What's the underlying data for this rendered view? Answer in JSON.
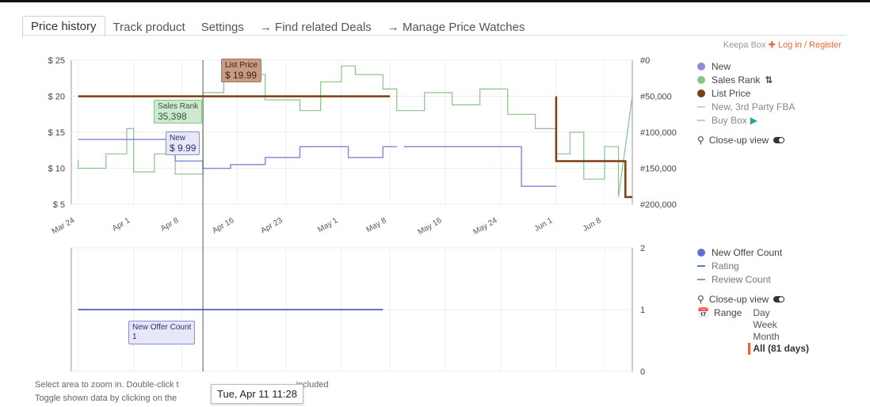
{
  "tabs": [
    {
      "label": "Price history",
      "active": true
    },
    {
      "label": "Track product"
    },
    {
      "label": "Settings"
    },
    {
      "label": "→ Find related Deals"
    },
    {
      "label": "→ Manage Price Watches"
    }
  ],
  "keepa": {
    "brand": "Keepa Box",
    "login": "Log in / Register"
  },
  "legend_top": {
    "new": "New",
    "sales_rank": "Sales Rank",
    "list_price": "List Price",
    "third_party": "New, 3rd Party FBA",
    "buy_box": "Buy Box",
    "closeup": "Close-up view"
  },
  "legend_bottom": {
    "offer_count": "New Offer Count",
    "rating": "Rating",
    "review_count": "Review Count",
    "closeup": "Close-up view",
    "range_label": "Range",
    "ranges": [
      "Day",
      "Week",
      "Month",
      "All (81 days)"
    ]
  },
  "tooltips": {
    "list_price_title": "List Price",
    "list_price_value": "$ 19.99",
    "sales_rank_title": "Sales Rank",
    "sales_rank_value": "35,398",
    "new_title": "New",
    "new_value": "$ 9.99",
    "offer_title": "New Offer Count",
    "offer_value": "1",
    "date": "Tue, Apr 11 11:28"
  },
  "footer": {
    "line1a": "Select area to zoom in. Double-click t",
    "line1b": "included",
    "line2": "Toggle shown data by clicking on the"
  },
  "colors": {
    "new": "#8b8bd6",
    "sales_rank": "#8dc08d",
    "list_price": "#7a3f12",
    "offer_count": "#6670d4",
    "accent": "#e8663d"
  },
  "chart_data": [
    {
      "type": "line",
      "x_ticks": [
        "Mar 24",
        "Apr 1",
        "Apr 8",
        "Apr 16",
        "Apr 23",
        "May 1",
        "May 8",
        "May 16",
        "May 24",
        "Jun 1",
        "Jun 8"
      ],
      "y_left_ticks": [
        "$ 25",
        "$ 20",
        "$ 15",
        "$ 10",
        "$ 5"
      ],
      "y_right_ticks": [
        "#0",
        "#50,000",
        "#100,000",
        "#150,000",
        "#200,000"
      ],
      "ylim_left": [
        5,
        25
      ],
      "ylim_right": [
        0,
        200000
      ],
      "series": [
        {
          "name": "List Price",
          "x": [
            "Mar 24",
            "May 8",
            "May 8",
            "Jun 1",
            "Jun 1",
            "Jun 11",
            "Jun 11",
            "Jun 12"
          ],
          "y": [
            19.99,
            19.99,
            null,
            19.99,
            10.99,
            10.99,
            6.0,
            6.0
          ]
        },
        {
          "name": "New",
          "x": [
            "Mar 24",
            "Apr 7",
            "Apr 7",
            "Apr 11",
            "Apr 11",
            "Apr 15",
            "Apr 15",
            "Apr 20",
            "Apr 20",
            "Apr 25",
            "Apr 25",
            "May 2",
            "May 2",
            "May 7",
            "May 7",
            "May 9",
            "May 10",
            "May 10",
            "May 27",
            "May 27",
            "Jun 1"
          ],
          "y": [
            14.0,
            14.0,
            11.0,
            11.0,
            9.99,
            9.99,
            10.5,
            10.5,
            11.5,
            11.5,
            13.0,
            13.0,
            11.5,
            11.5,
            13.0,
            13.0,
            null,
            13.0,
            13.0,
            7.5,
            7.5
          ]
        },
        {
          "name": "Sales Rank",
          "x": [
            "Mar 24",
            "Mar 24",
            "Mar 28",
            "Mar 28",
            "Mar 31",
            "Mar 31",
            "Apr 1",
            "Apr 1",
            "Apr 4",
            "Apr 4",
            "Apr 7",
            "Apr 7",
            "Apr 11",
            "Apr 11",
            "Apr 14",
            "Apr 14",
            "Apr 20",
            "Apr 20",
            "Apr 25",
            "Apr 25",
            "Apr 28",
            "Apr 28",
            "May 1",
            "May 1",
            "May 3",
            "May 3",
            "May 7",
            "May 7",
            "May 9",
            "May 9",
            "May 13",
            "May 13",
            "May 17",
            "May 17",
            "May 21",
            "May 21",
            "May 25",
            "May 25",
            "May 29",
            "May 29",
            "Jun 1",
            "Jun 1",
            "Jun 3",
            "Jun 3",
            "Jun 5",
            "Jun 5",
            "Jun 8",
            "Jun 8",
            "Jun 10",
            "Jun 10",
            "Jun 12"
          ],
          "y": [
            138000,
            150000,
            150000,
            130000,
            130000,
            95000,
            95000,
            155000,
            155000,
            130000,
            130000,
            158000,
            158000,
            45000,
            45000,
            20000,
            20000,
            55000,
            55000,
            70000,
            70000,
            30000,
            30000,
            8000,
            8000,
            20000,
            20000,
            40000,
            40000,
            70000,
            70000,
            45000,
            45000,
            62000,
            62000,
            40000,
            40000,
            75000,
            75000,
            95000,
            95000,
            130000,
            130000,
            100000,
            100000,
            165000,
            165000,
            120000,
            120000,
            190000,
            50000
          ]
        }
      ]
    },
    {
      "type": "line",
      "x_ticks": [
        "Mar 24",
        "Apr 1",
        "Apr 8",
        "Apr 16",
        "Apr 23",
        "May 1",
        "May 8",
        "May 16",
        "May 24",
        "Jun 1",
        "Jun 8"
      ],
      "y_right_ticks": [
        "2",
        "1",
        "0"
      ],
      "ylim": [
        0,
        2
      ],
      "series": [
        {
          "name": "New Offer Count",
          "x": [
            "Mar 24",
            "May 7",
            "May 9",
            "Jun 12"
          ],
          "y": [
            1,
            1,
            null,
            1
          ]
        }
      ]
    }
  ]
}
